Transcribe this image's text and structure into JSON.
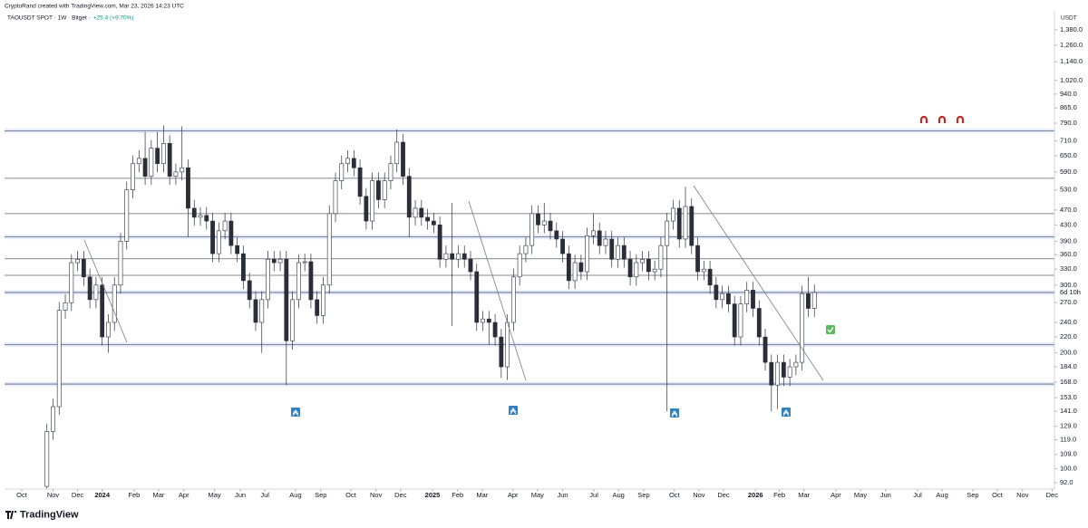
{
  "chart_data": {
    "type": "candlestick",
    "subtitle": "CryptoRand created with TradingView.com, Mar 23, 2026 14:23 UTC",
    "title": "TAOUSDT SPOT · 1W · Bitget ·",
    "change": "+25.4 (+9.70%)",
    "y_axis_label": "USDT",
    "countdown": "6d 10h",
    "watermark": "TradingView",
    "log_scale": true,
    "grid": false,
    "up_color": "#ffffff",
    "down_color": "#2a2e39",
    "outline_color": "#2a2e39",
    "ylim": [
      88.6,
      1546
    ],
    "yticks": [
      {
        "value": 1380,
        "label": "1,380.0"
      },
      {
        "value": 1260,
        "label": "1,260.0"
      },
      {
        "value": 1140,
        "label": "1,140.0"
      },
      {
        "value": 1020,
        "label": "1,020.0"
      },
      {
        "value": 940,
        "label": "940.0"
      },
      {
        "value": 865,
        "label": "865.0"
      },
      {
        "value": 790,
        "label": "790.0"
      },
      {
        "value": 710,
        "label": "710.0"
      },
      {
        "value": 650,
        "label": "650.0"
      },
      {
        "value": 590,
        "label": "590.0"
      },
      {
        "value": 530,
        "label": "530.0"
      },
      {
        "value": 470,
        "label": "470.0"
      },
      {
        "value": 430,
        "label": "430.0"
      },
      {
        "value": 390,
        "label": "390.0"
      },
      {
        "value": 360,
        "label": "360.0"
      },
      {
        "value": 330,
        "label": "330.0"
      },
      {
        "value": 300,
        "label": "300.0"
      },
      {
        "value": 270,
        "label": "270.0"
      },
      {
        "value": 240,
        "label": "240.0"
      },
      {
        "value": 220,
        "label": "220.0"
      },
      {
        "value": 200,
        "label": "200.0"
      },
      {
        "value": 184,
        "label": "184.0"
      },
      {
        "value": 168,
        "label": "168.0"
      },
      {
        "value": 153,
        "label": "153.0"
      },
      {
        "value": 141,
        "label": "141.0"
      },
      {
        "value": 129,
        "label": "129.0"
      },
      {
        "value": 119,
        "label": "119.0"
      },
      {
        "value": 109,
        "label": "109.0"
      },
      {
        "value": 100,
        "label": "100.0"
      },
      {
        "value": 92,
        "label": "92.0"
      }
    ],
    "xlim": [
      -6.9,
      164.1
    ],
    "xticks": [
      {
        "value": -4.1,
        "label": "Oct"
      },
      {
        "value": 1.0,
        "label": "Nov"
      },
      {
        "value": 5.0,
        "label": "Dec"
      },
      {
        "value": 9.0,
        "label": "2024"
      },
      {
        "value": 14.2,
        "label": "Feb"
      },
      {
        "value": 18.2,
        "label": "Mar"
      },
      {
        "value": 22.3,
        "label": "Apr"
      },
      {
        "value": 27.3,
        "label": "May"
      },
      {
        "value": 31.5,
        "label": "Jun"
      },
      {
        "value": 35.5,
        "label": "Jul"
      },
      {
        "value": 40.5,
        "label": "Aug"
      },
      {
        "value": 44.6,
        "label": "Sep"
      },
      {
        "value": 49.5,
        "label": "Oct"
      },
      {
        "value": 53.6,
        "label": "Nov"
      },
      {
        "value": 57.6,
        "label": "Dec"
      },
      {
        "value": 62.8,
        "label": "2025"
      },
      {
        "value": 66.9,
        "label": "Feb"
      },
      {
        "value": 70.9,
        "label": "Mar"
      },
      {
        "value": 75.9,
        "label": "Apr"
      },
      {
        "value": 79.9,
        "label": "May"
      },
      {
        "value": 84.0,
        "label": "Jun"
      },
      {
        "value": 89.1,
        "label": "Jul"
      },
      {
        "value": 93.1,
        "label": "Aug"
      },
      {
        "value": 97.2,
        "label": "Sep"
      },
      {
        "value": 102.2,
        "label": "Oct"
      },
      {
        "value": 106.2,
        "label": "Nov"
      },
      {
        "value": 110.2,
        "label": "Dec"
      },
      {
        "value": 115.4,
        "label": "2026"
      },
      {
        "value": 119.3,
        "label": "Feb"
      },
      {
        "value": 123.3,
        "label": "Mar"
      },
      {
        "value": 128.5,
        "label": "Apr"
      },
      {
        "value": 132.5,
        "label": "May"
      },
      {
        "value": 136.6,
        "label": "Jun"
      },
      {
        "value": 141.8,
        "label": "Jul"
      },
      {
        "value": 145.8,
        "label": "Aug"
      },
      {
        "value": 150.8,
        "label": "Sep"
      },
      {
        "value": 154.8,
        "label": "Oct"
      },
      {
        "value": 158.9,
        "label": "Nov"
      },
      {
        "value": 163.7,
        "label": "Dec"
      }
    ],
    "levels": [
      {
        "value": 755,
        "color": "#2962ff"
      },
      {
        "value": 400,
        "color": "#2962ff"
      },
      {
        "value": 287,
        "color": "#2962ff"
      },
      {
        "value": 210,
        "color": "#2962ff"
      },
      {
        "value": 166,
        "color": "#2962ff"
      },
      {
        "value": 568,
        "color": "#787b86"
      },
      {
        "value": 460,
        "color": "#787b86"
      },
      {
        "value": 351,
        "color": "#787b86"
      },
      {
        "value": 318,
        "color": "#787b86"
      }
    ],
    "candles": [
      [
        90,
        131,
        89,
        125
      ],
      [
        125,
        152,
        119,
        145
      ],
      [
        145,
        271,
        138,
        258
      ],
      [
        258,
        284,
        245,
        270
      ],
      [
        270,
        360,
        257,
        343
      ],
      [
        343,
        368,
        326,
        350
      ],
      [
        350,
        368,
        299,
        315
      ],
      [
        315,
        331,
        261,
        275
      ],
      [
        275,
        315,
        261,
        300
      ],
      [
        300,
        315,
        209,
        220
      ],
      [
        220,
        252,
        200,
        240
      ],
      [
        240,
        315,
        228,
        300
      ],
      [
        300,
        410,
        285,
        390
      ],
      [
        390,
        557,
        371,
        530
      ],
      [
        530,
        651,
        504,
        620
      ],
      [
        620,
        672,
        589,
        640
      ],
      [
        640,
        750,
        546,
        575
      ],
      [
        575,
        714,
        546,
        680
      ],
      [
        680,
        750,
        589,
        620
      ],
      [
        620,
        780,
        589,
        700
      ],
      [
        700,
        735,
        546,
        575
      ],
      [
        575,
        620,
        546,
        590
      ],
      [
        590,
        775,
        561,
        605
      ],
      [
        605,
        635,
        400,
        475
      ],
      [
        475,
        499,
        428,
        450
      ],
      [
        450,
        478,
        428,
        455
      ],
      [
        455,
        478,
        418,
        440
      ],
      [
        440,
        462,
        344,
        362
      ],
      [
        362,
        436,
        344,
        415
      ],
      [
        415,
        462,
        394,
        440
      ],
      [
        440,
        462,
        361,
        380
      ],
      [
        380,
        399,
        344,
        362
      ],
      [
        362,
        380,
        293,
        308
      ],
      [
        308,
        323,
        261,
        275
      ],
      [
        275,
        289,
        228,
        240
      ],
      [
        240,
        289,
        200,
        275
      ],
      [
        275,
        368,
        261,
        350
      ],
      [
        350,
        368,
        326,
        343
      ],
      [
        343,
        368,
        326,
        350
      ],
      [
        350,
        368,
        165,
        215
      ],
      [
        215,
        289,
        204,
        275
      ],
      [
        275,
        360,
        261,
        343
      ],
      [
        343,
        362,
        326,
        345
      ],
      [
        345,
        362,
        261,
        275
      ],
      [
        275,
        289,
        238,
        250
      ],
      [
        250,
        315,
        238,
        300
      ],
      [
        300,
        483,
        285,
        460
      ],
      [
        460,
        588,
        437,
        560
      ],
      [
        560,
        651,
        532,
        620
      ],
      [
        620,
        672,
        589,
        640
      ],
      [
        640,
        672,
        575,
        605
      ],
      [
        605,
        635,
        485,
        510
      ],
      [
        510,
        536,
        418,
        440
      ],
      [
        440,
        588,
        418,
        560
      ],
      [
        560,
        588,
        475,
        500
      ],
      [
        500,
        588,
        475,
        560
      ],
      [
        560,
        651,
        532,
        620
      ],
      [
        620,
        760,
        589,
        705
      ],
      [
        705,
        740,
        546,
        575
      ],
      [
        575,
        604,
        400,
        450
      ],
      [
        450,
        499,
        428,
        475
      ],
      [
        475,
        499,
        428,
        450
      ],
      [
        450,
        473,
        418,
        440
      ],
      [
        440,
        462,
        409,
        430
      ],
      [
        430,
        452,
        333,
        350
      ],
      [
        350,
        380,
        333,
        362
      ],
      [
        362,
        490,
        235,
        350
      ],
      [
        350,
        380,
        333,
        362
      ],
      [
        362,
        380,
        333,
        350
      ],
      [
        350,
        368,
        309,
        325
      ],
      [
        325,
        341,
        228,
        240
      ],
      [
        240,
        257,
        228,
        245
      ],
      [
        245,
        257,
        210,
        240
      ],
      [
        240,
        252,
        209,
        220
      ],
      [
        220,
        231,
        172,
        184
      ],
      [
        184,
        252,
        170,
        240
      ],
      [
        240,
        331,
        228,
        315
      ],
      [
        315,
        380,
        299,
        362
      ],
      [
        362,
        399,
        344,
        380
      ],
      [
        380,
        483,
        361,
        460
      ],
      [
        460,
        483,
        409,
        430
      ],
      [
        430,
        490,
        409,
        440
      ],
      [
        440,
        462,
        394,
        415
      ],
      [
        415,
        436,
        375,
        395
      ],
      [
        395,
        415,
        344,
        362
      ],
      [
        362,
        380,
        293,
        308
      ],
      [
        308,
        360,
        293,
        343
      ],
      [
        343,
        360,
        309,
        325
      ],
      [
        325,
        423,
        309,
        403
      ],
      [
        403,
        460,
        383,
        415
      ],
      [
        415,
        436,
        361,
        380
      ],
      [
        380,
        415,
        361,
        395
      ],
      [
        395,
        415,
        333,
        350
      ],
      [
        350,
        399,
        333,
        380
      ],
      [
        380,
        399,
        333,
        350
      ],
      [
        350,
        368,
        299,
        315
      ],
      [
        315,
        360,
        299,
        343
      ],
      [
        343,
        368,
        326,
        350
      ],
      [
        350,
        368,
        309,
        325
      ],
      [
        325,
        347,
        309,
        330
      ],
      [
        330,
        399,
        314,
        380
      ],
      [
        380,
        462,
        141,
        440
      ],
      [
        440,
        499,
        418,
        475
      ],
      [
        475,
        499,
        375,
        395
      ],
      [
        395,
        540,
        375,
        480
      ],
      [
        480,
        504,
        361,
        380
      ],
      [
        380,
        399,
        309,
        325
      ],
      [
        325,
        347,
        309,
        330
      ],
      [
        330,
        347,
        285,
        300
      ],
      [
        300,
        315,
        261,
        275
      ],
      [
        275,
        299,
        261,
        285
      ],
      [
        285,
        299,
        255,
        268
      ],
      [
        268,
        281,
        209,
        220
      ],
      [
        220,
        281,
        209,
        268
      ],
      [
        268,
        306,
        255,
        291
      ],
      [
        291,
        306,
        248,
        261
      ],
      [
        261,
        274,
        209,
        220
      ],
      [
        220,
        231,
        180,
        189
      ],
      [
        189,
        198,
        141,
        165
      ],
      [
        165,
        198,
        143,
        189
      ],
      [
        189,
        198,
        164,
        173
      ],
      [
        173,
        193,
        164,
        184
      ],
      [
        184,
        198,
        175,
        189
      ],
      [
        189,
        299,
        180,
        285
      ],
      [
        285,
        315,
        248,
        261
      ],
      [
        261,
        301,
        248,
        287
      ]
    ]
  }
}
